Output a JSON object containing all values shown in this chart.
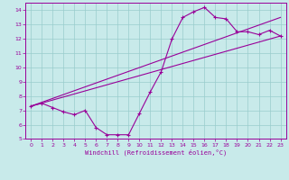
{
  "bg_color": "#c8eaea",
  "grid_color": "#99cccc",
  "line_color": "#990099",
  "marker": "+",
  "xlabel": "Windchill (Refroidissement éolien,°C)",
  "xlim": [
    -0.5,
    23.5
  ],
  "ylim": [
    5,
    14.5
  ],
  "yticks": [
    5,
    6,
    7,
    8,
    9,
    10,
    11,
    12,
    13,
    14
  ],
  "xticks": [
    0,
    1,
    2,
    3,
    4,
    5,
    6,
    7,
    8,
    9,
    10,
    11,
    12,
    13,
    14,
    15,
    16,
    17,
    18,
    19,
    20,
    21,
    22,
    23
  ],
  "line1_x": [
    0,
    1,
    2,
    3,
    4,
    5,
    6,
    7,
    8,
    9,
    10,
    11,
    12,
    13,
    14,
    15,
    16,
    17,
    18,
    19,
    20,
    21,
    22,
    23
  ],
  "line1_y": [
    7.3,
    7.5,
    7.2,
    6.9,
    6.7,
    7.0,
    5.8,
    5.3,
    5.3,
    5.3,
    6.8,
    8.3,
    9.7,
    12.0,
    13.5,
    13.9,
    14.2,
    13.5,
    13.4,
    12.5,
    12.5,
    12.3,
    12.6,
    12.2
  ],
  "line2_x": [
    0,
    23
  ],
  "line2_y": [
    7.3,
    12.2
  ],
  "line3_x": [
    0,
    23
  ],
  "line3_y": [
    7.3,
    13.5
  ]
}
